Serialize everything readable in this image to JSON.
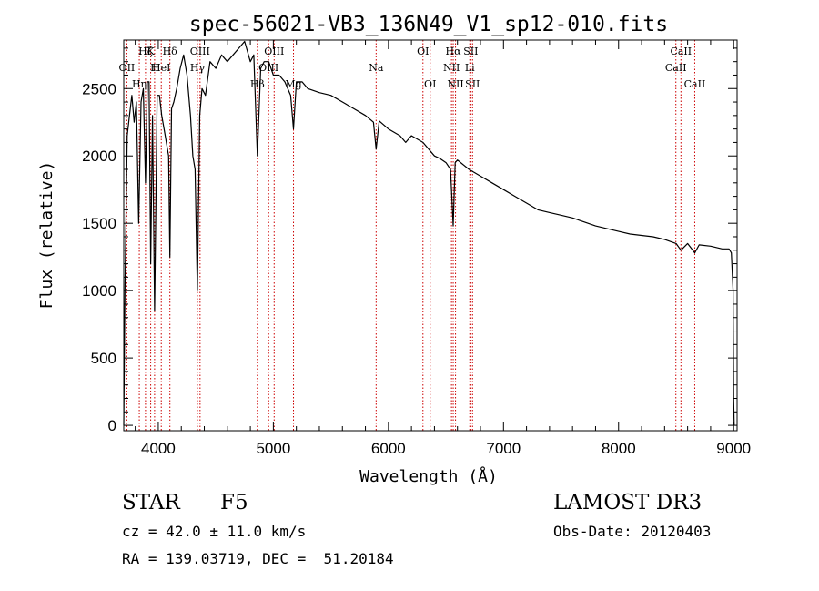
{
  "chart_data": {
    "type": "line",
    "title": "spec-56021-VB3_136N49_V1_sp12-010.fits",
    "xlabel": "Wavelength (Å)",
    "ylabel": "Flux (relative)",
    "xlim": [
      3700,
      9030
    ],
    "ylim": [
      -40,
      2860
    ],
    "x_ticks": [
      {
        "value": 4000,
        "label": "4000"
      },
      {
        "value": 5000,
        "label": "5000"
      },
      {
        "value": 6000,
        "label": "6000"
      },
      {
        "value": 7000,
        "label": "7000"
      },
      {
        "value": 8000,
        "label": "8000"
      },
      {
        "value": 9000,
        "label": "9000"
      }
    ],
    "y_ticks": [
      {
        "value": 0,
        "label": "0"
      },
      {
        "value": 500,
        "label": "500"
      },
      {
        "value": 1000,
        "label": "1000"
      },
      {
        "value": 1500,
        "label": "1500"
      },
      {
        "value": 2000,
        "label": "2000"
      },
      {
        "value": 2500,
        "label": "2500"
      }
    ],
    "series": [
      {
        "name": "spectrum",
        "x": [
          3700,
          3710,
          3730,
          3750,
          3770,
          3790,
          3810,
          3830,
          3850,
          3870,
          3889,
          3905,
          3920,
          3934,
          3950,
          3968,
          3990,
          4010,
          4030,
          4050,
          4070,
          4090,
          4101,
          4115,
          4135,
          4160,
          4190,
          4220,
          4250,
          4280,
          4300,
          4320,
          4340,
          4360,
          4380,
          4410,
          4450,
          4500,
          4550,
          4600,
          4650,
          4700,
          4750,
          4800,
          4830,
          4861,
          4890,
          4920,
          4960,
          5000,
          5050,
          5100,
          5150,
          5175,
          5200,
          5250,
          5300,
          5400,
          5500,
          5600,
          5700,
          5800,
          5870,
          5893,
          5920,
          6000,
          6100,
          6150,
          6200,
          6300,
          6400,
          6450,
          6500,
          6540,
          6563,
          6580,
          6600,
          6700,
          6800,
          6900,
          7000,
          7100,
          7200,
          7300,
          7400,
          7500,
          7600,
          7700,
          7800,
          7900,
          8000,
          8100,
          8200,
          8300,
          8400,
          8500,
          8542,
          8600,
          8662,
          8700,
          8800,
          8900,
          8960,
          8980,
          8995,
          9000,
          9005
        ],
        "y": [
          0,
          1000,
          2150,
          2300,
          2450,
          2250,
          2400,
          1500,
          2400,
          2500,
          1800,
          2550,
          2550,
          1200,
          2300,
          850,
          2450,
          2450,
          2300,
          2200,
          2100,
          2000,
          1250,
          2350,
          2400,
          2500,
          2650,
          2750,
          2600,
          2300,
          2000,
          1900,
          1000,
          2300,
          2500,
          2450,
          2700,
          2650,
          2750,
          2700,
          2750,
          2800,
          2850,
          2700,
          2750,
          2000,
          2650,
          2700,
          2700,
          2600,
          2600,
          2550,
          2450,
          2200,
          2550,
          2550,
          2500,
          2470,
          2450,
          2400,
          2350,
          2300,
          2250,
          2050,
          2260,
          2200,
          2150,
          2100,
          2150,
          2100,
          2000,
          1980,
          1950,
          1900,
          1480,
          1950,
          1970,
          1900,
          1850,
          1800,
          1750,
          1700,
          1650,
          1600,
          1580,
          1560,
          1540,
          1510,
          1480,
          1460,
          1440,
          1420,
          1410,
          1400,
          1380,
          1350,
          1300,
          1350,
          1280,
          1340,
          1330,
          1310,
          1310,
          1280,
          1000,
          200,
          0
        ]
      }
    ],
    "lines": [
      {
        "x": 3727,
        "label": "OII",
        "row": 1
      },
      {
        "x": 3835,
        "label": "Hη",
        "row": 2
      },
      {
        "x": 3889,
        "label": "Hζ",
        "row": 0
      },
      {
        "x": 3934,
        "label": "K",
        "row": 0
      },
      {
        "x": 3968,
        "label": "H",
        "row": 1
      },
      {
        "x": 4026,
        "label": "HeI",
        "row": 1
      },
      {
        "x": 4101,
        "label": "Hδ",
        "row": 0
      },
      {
        "x": 4340,
        "label": "Hγ",
        "row": 1
      },
      {
        "x": 4363,
        "label": "OIII",
        "row": 0
      },
      {
        "x": 4861,
        "label": "Hβ",
        "row": 2
      },
      {
        "x": 4959,
        "label": "OIII",
        "row": 1
      },
      {
        "x": 5007,
        "label": "OIII",
        "row": 0
      },
      {
        "x": 5175,
        "label": "Mg",
        "row": 2
      },
      {
        "x": 5893,
        "label": "Na",
        "row": 1
      },
      {
        "x": 6300,
        "label": "OI",
        "row": 0
      },
      {
        "x": 6363,
        "label": "OI",
        "row": 2
      },
      {
        "x": 6548,
        "label": "NII",
        "row": 1
      },
      {
        "x": 6563,
        "label": "Hα",
        "row": 0
      },
      {
        "x": 6583,
        "label": "NII",
        "row": 2
      },
      {
        "x": 6707,
        "label": "Li",
        "row": 1
      },
      {
        "x": 6716,
        "label": "SII",
        "row": 0
      },
      {
        "x": 6731,
        "label": "SII",
        "row": 2
      },
      {
        "x": 8498,
        "label": "CaII",
        "row": 1
      },
      {
        "x": 8542,
        "label": "CaII",
        "row": 0
      },
      {
        "x": 8662,
        "label": "CaII",
        "row": 2
      }
    ],
    "grid": false
  },
  "info": {
    "class": "STAR",
    "subclass": "F5",
    "survey": "LAMOST DR3",
    "redshift": "cz = 42.0 ± 11.0 km/s",
    "obs_date": "Obs-Date: 20120403",
    "coords": "RA = 139.03719, DEC =  51.20184"
  },
  "colors": {
    "line_marker": "#cc0000",
    "axis": "#000000",
    "spectrum": "#000000"
  }
}
